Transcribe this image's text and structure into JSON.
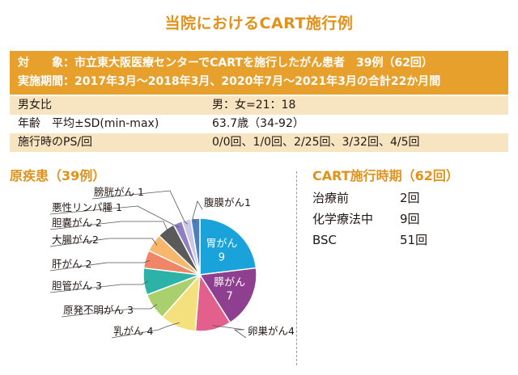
{
  "title": "当院におけるCART施行例",
  "header": {
    "line1": "対　　象：市立東大阪医療センターでCARTを施行したがん患者　39例（62回）",
    "line2": "実施期間：2017年3月～2018年3月、2020年7月～2021年3月の合計22か月間"
  },
  "stats": [
    {
      "label": "男女比",
      "value": "男：女=21：18"
    },
    {
      "label": "年齢　平均±SD(min-max)",
      "value": "63.7歳（34-92）"
    },
    {
      "label": "施行時のPS/回",
      "value": "0/0回、1/0回、2/25回、3/32回、4/5回"
    }
  ],
  "colors": {
    "accent": "#e0921a",
    "header_bg": "#e8a02c",
    "shade": "#f7e4c0"
  },
  "chart_data": {
    "type": "pie",
    "title": "原疾患（39例）",
    "slices": [
      {
        "label": "胃がん",
        "value": 9,
        "color": "#1aa3db",
        "inside": true,
        "text": "胃がん\n9"
      },
      {
        "label": "膵がん",
        "value": 7,
        "color": "#8e3f8f",
        "inside": true,
        "text": "膵がん\n7"
      },
      {
        "label": "卵巣がん",
        "value": 4,
        "color": "#e35f8c",
        "text": "卵巣がん4"
      },
      {
        "label": "乳がん",
        "value": 4,
        "color": "#f5e07e",
        "text": "乳がん 4"
      },
      {
        "label": "原発不明がん",
        "value": 3,
        "color": "#a9d06d",
        "text": "原発不明がん 3"
      },
      {
        "label": "胆管がん",
        "value": 3,
        "color": "#2bb3a7",
        "text": "胆管がん 3"
      },
      {
        "label": "肝がん",
        "value": 2,
        "color": "#ef8667",
        "text": "肝がん 2"
      },
      {
        "label": "大腸がん",
        "value": 2,
        "color": "#f6b76c",
        "text": "大腸がん2"
      },
      {
        "label": "胆嚢がん",
        "value": 2,
        "color": "#5a5a5a",
        "text": "胆嚢がん 2"
      },
      {
        "label": "悪性リンパ腫",
        "value": 1,
        "color": "#8f7fbf",
        "text": "悪性リンパ腫 1"
      },
      {
        "label": "膀胱がん",
        "value": 1,
        "color": "#c9c9e6",
        "text": "膀胱がん 1"
      },
      {
        "label": "腹膜がん",
        "value": 1,
        "color": "#4a7fc1",
        "text": "腹膜がん1"
      }
    ]
  },
  "timing": {
    "title": "CART施行時期（62回）",
    "rows": [
      {
        "label": "治療前",
        "value": "2回"
      },
      {
        "label": "化学療法中",
        "value": "9回"
      },
      {
        "label": "BSC",
        "value": "51回"
      }
    ]
  }
}
